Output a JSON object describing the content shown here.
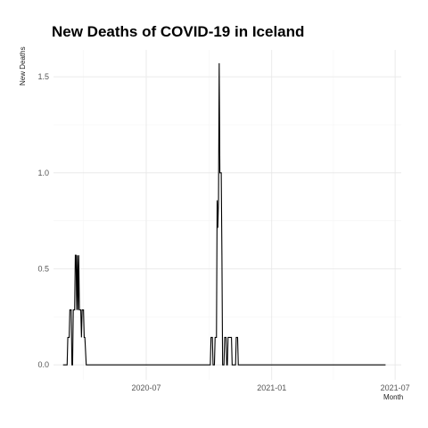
{
  "chart_data": {
    "type": "line",
    "title": "New Deaths of COVID-19 in Iceland",
    "xlabel": "Month",
    "ylabel": "New Deaths",
    "x_ticks": [
      {
        "date": "2020-07-01",
        "label": "2020-07"
      },
      {
        "date": "2021-01-01",
        "label": "2021-01"
      },
      {
        "date": "2021-07-01",
        "label": "2021-07"
      }
    ],
    "y_ticks": [
      {
        "value": 0.0,
        "label": "0.0"
      },
      {
        "value": 0.5,
        "label": "0.5"
      },
      {
        "value": 1.0,
        "label": "1.0"
      },
      {
        "value": 1.5,
        "label": "1.5"
      }
    ],
    "xlim": [
      "2020-02-16",
      "2021-07-10"
    ],
    "ylim": [
      -0.078,
      1.64
    ],
    "grid": true,
    "series": [
      {
        "values": [
          [
            "2020-03-01",
            0.0
          ],
          [
            "2020-03-07",
            0.0
          ],
          [
            "2020-03-08",
            0.143
          ],
          [
            "2020-03-10",
            0.143
          ],
          [
            "2020-03-11",
            0.286
          ],
          [
            "2020-03-13",
            0.286
          ],
          [
            "2020-03-14",
            0.0
          ],
          [
            "2020-03-15",
            0.0
          ],
          [
            "2020-03-16",
            0.286
          ],
          [
            "2020-03-18",
            0.286
          ],
          [
            "2020-03-19",
            0.571
          ],
          [
            "2020-03-20",
            0.571
          ],
          [
            "2020-03-21",
            0.286
          ],
          [
            "2020-03-22",
            0.571
          ],
          [
            "2020-03-23",
            0.286
          ],
          [
            "2020-03-24",
            0.571
          ],
          [
            "2020-03-25",
            0.286
          ],
          [
            "2020-03-27",
            0.286
          ],
          [
            "2020-03-28",
            0.143
          ],
          [
            "2020-03-29",
            0.286
          ],
          [
            "2020-03-31",
            0.286
          ],
          [
            "2020-04-01",
            0.143
          ],
          [
            "2020-04-02",
            0.143
          ],
          [
            "2020-04-04",
            0.0
          ],
          [
            "2020-10-03",
            0.0
          ],
          [
            "2020-10-04",
            0.143
          ],
          [
            "2020-10-06",
            0.143
          ],
          [
            "2020-10-07",
            0.0
          ],
          [
            "2020-10-09",
            0.0
          ],
          [
            "2020-10-10",
            0.143
          ],
          [
            "2020-10-12",
            0.143
          ],
          [
            "2020-10-13",
            0.857
          ],
          [
            "2020-10-14",
            0.714
          ],
          [
            "2020-10-15",
            0.857
          ],
          [
            "2020-10-16",
            1.571
          ],
          [
            "2020-10-17",
            1.0
          ],
          [
            "2020-10-18",
            1.0
          ],
          [
            "2020-10-19",
            1.0
          ],
          [
            "2020-10-20",
            0.571
          ],
          [
            "2020-10-21",
            0.0
          ],
          [
            "2020-10-23",
            0.0
          ],
          [
            "2020-10-24",
            0.143
          ],
          [
            "2020-10-26",
            0.143
          ],
          [
            "2020-10-27",
            0.0
          ],
          [
            "2020-10-28",
            0.0
          ],
          [
            "2020-10-29",
            0.143
          ],
          [
            "2020-11-03",
            0.143
          ],
          [
            "2020-11-04",
            0.0
          ],
          [
            "2020-11-09",
            0.0
          ],
          [
            "2020-11-10",
            0.143
          ],
          [
            "2020-11-12",
            0.143
          ],
          [
            "2020-11-13",
            0.0
          ],
          [
            "2021-06-17",
            0.0
          ]
        ]
      }
    ]
  }
}
